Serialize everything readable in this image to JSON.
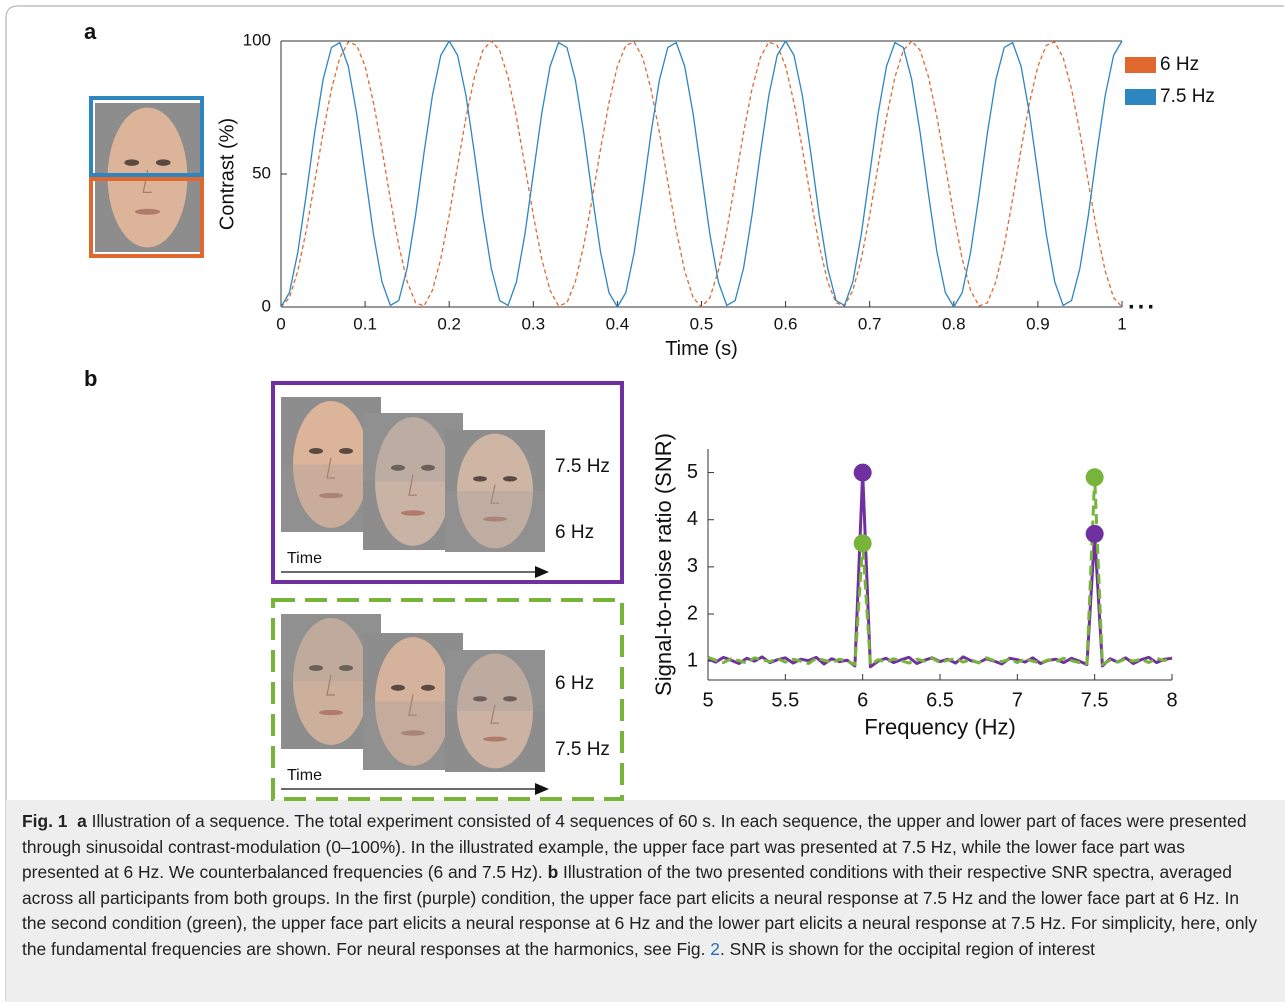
{
  "chart_data": [
    {
      "type": "line",
      "panel": "a",
      "xlabel": "Time (s)",
      "ylabel": "Contrast (%)",
      "annotation": "...",
      "box": true,
      "legend": "right",
      "x": [
        0,
        0.01,
        0.02,
        0.03,
        0.04,
        0.05,
        0.06,
        0.07,
        0.08,
        0.09,
        0.1,
        0.11,
        0.12,
        0.13,
        0.14,
        0.15,
        0.16,
        0.17,
        0.18,
        0.19,
        0.2,
        0.21,
        0.22,
        0.23,
        0.24,
        0.25,
        0.26,
        0.27,
        0.28,
        0.29,
        0.3,
        0.31,
        0.32,
        0.33,
        0.34,
        0.35,
        0.36,
        0.37,
        0.38,
        0.39,
        0.4,
        0.41,
        0.42,
        0.43,
        0.44,
        0.45,
        0.46,
        0.47,
        0.48,
        0.49,
        0.5,
        0.51,
        0.52,
        0.53,
        0.54,
        0.55,
        0.56,
        0.57,
        0.58,
        0.59,
        0.6,
        0.61,
        0.62,
        0.63,
        0.64,
        0.65,
        0.66,
        0.67,
        0.68,
        0.69,
        0.7,
        0.71,
        0.72,
        0.73,
        0.74,
        0.75,
        0.76,
        0.77,
        0.78,
        0.79,
        0.8,
        0.81,
        0.82,
        0.83,
        0.84,
        0.85,
        0.86,
        0.87,
        0.88,
        0.89,
        0.9,
        0.91,
        0.92,
        0.93,
        0.94,
        0.95,
        0.96,
        0.97,
        0.98,
        0.99,
        1
      ],
      "series": [
        {
          "name": "6 Hz",
          "color": "#e0682f",
          "dash": true,
          "values": [
            0,
            3.5,
            13.6,
            28.7,
            46.9,
            65.5,
            81.9,
            93.8,
            99.6,
            98.4,
            90.5,
            76.8,
            59.4,
            40.6,
            23.2,
            9.5,
            1.6,
            0.4,
            6.2,
            18.1,
            34.5,
            53.1,
            71.3,
            86.4,
            96.5,
            100,
            96.5,
            86.4,
            71.3,
            53.1,
            34.5,
            18.1,
            6.2,
            0.4,
            1.6,
            9.5,
            23.2,
            40.6,
            59.4,
            76.8,
            90.5,
            98.4,
            99.6,
            93.8,
            81.9,
            65.5,
            46.9,
            28.7,
            13.6,
            3.5,
            0,
            3.5,
            13.6,
            28.7,
            46.9,
            65.5,
            81.9,
            93.8,
            99.6,
            98.4,
            90.5,
            76.8,
            59.4,
            40.6,
            23.2,
            9.5,
            1.6,
            0.4,
            6.2,
            18.1,
            34.5,
            53.1,
            71.3,
            86.4,
            96.5,
            100,
            96.5,
            86.4,
            71.3,
            53.1,
            34.5,
            18.1,
            6.2,
            0.4,
            1.6,
            9.5,
            23.2,
            40.6,
            59.4,
            76.8,
            90.5,
            98.4,
            99.6,
            93.8,
            81.9,
            65.5,
            46.9,
            28.7,
            13.6,
            3.5,
            0
          ]
        },
        {
          "name": "7.5 Hz",
          "color": "#2e86c1",
          "dash": false,
          "values": [
            0,
            5.4,
            20.6,
            42.2,
            65.5,
            85.4,
            97.6,
            99.4,
            90.5,
            72.7,
            50,
            27.3,
            9.5,
            0.6,
            2.4,
            14.6,
            34.5,
            57.8,
            79.4,
            94.6,
            100,
            94.6,
            79.4,
            57.8,
            34.5,
            14.6,
            2.4,
            0.6,
            9.5,
            27.3,
            50,
            72.7,
            90.5,
            99.4,
            97.6,
            85.4,
            65.5,
            42.2,
            20.6,
            5.4,
            0,
            5.4,
            20.6,
            42.2,
            65.5,
            85.4,
            97.6,
            99.4,
            90.5,
            72.7,
            50,
            27.3,
            9.5,
            0.6,
            2.4,
            14.6,
            34.5,
            57.8,
            79.4,
            94.6,
            100,
            94.6,
            79.4,
            57.8,
            34.5,
            14.6,
            2.4,
            0.6,
            9.5,
            27.3,
            50,
            72.7,
            90.5,
            99.4,
            97.6,
            85.4,
            65.5,
            42.2,
            20.6,
            5.4,
            0,
            5.4,
            20.6,
            42.2,
            65.5,
            85.4,
            97.6,
            99.4,
            90.5,
            72.7,
            50,
            27.3,
            9.5,
            0.6,
            2.4,
            14.6,
            34.5,
            57.8,
            79.4,
            94.6,
            100
          ]
        }
      ],
      "xlim": [
        0,
        1
      ],
      "ylim": [
        0,
        100
      ],
      "xticks": [
        0,
        0.1,
        0.2,
        0.3,
        0.4,
        0.5,
        0.6,
        0.7,
        0.8,
        0.9,
        1
      ],
      "yticks": [
        0,
        50,
        100
      ]
    },
    {
      "type": "line",
      "panel": "b",
      "xlabel": "Frequency (Hz)",
      "ylabel": "Signal-to-noise ratio (SNR)",
      "box": false,
      "markers": true,
      "x": [
        5,
        5.05,
        5.1,
        5.15,
        5.2,
        5.25,
        5.3,
        5.35,
        5.4,
        5.45,
        5.5,
        5.55,
        5.6,
        5.65,
        5.7,
        5.75,
        5.8,
        5.85,
        5.9,
        5.95,
        6,
        6.05,
        6.1,
        6.15,
        6.2,
        6.25,
        6.3,
        6.35,
        6.4,
        6.45,
        6.5,
        6.55,
        6.6,
        6.65,
        6.7,
        6.75,
        6.8,
        6.85,
        6.9,
        6.95,
        7,
        7.05,
        7.1,
        7.15,
        7.2,
        7.25,
        7.3,
        7.35,
        7.4,
        7.45,
        7.5,
        7.55,
        7.6,
        7.65,
        7.7,
        7.75,
        7.8,
        7.85,
        7.9,
        7.95,
        8
      ],
      "series": [
        {
          "color": "#7030a0",
          "dash": false,
          "values": [
            1.05,
            0.98,
            1.08,
            1.02,
            0.95,
            1.06,
            1.0,
            1.09,
            0.97,
            1.03,
            1.07,
            0.96,
            1.04,
            1.01,
            1.08,
            0.94,
            1.05,
            0.99,
            1.02,
            0.9,
            5.0,
            0.88,
            1.0,
            1.06,
            0.97,
            1.03,
            1.08,
            0.95,
            1.02,
            1.07,
            0.99,
            1.04,
            0.96,
            1.09,
            1.01,
            0.97,
            1.05,
            1.0,
            0.94,
            1.06,
            1.03,
            0.98,
            1.07,
            0.95,
            1.02,
            1.04,
            0.97,
            1.06,
            1.0,
            0.93,
            3.7,
            0.9,
            1.05,
            0.98,
            1.07,
            0.95,
            1.03,
            1.08,
            0.97,
            1.04,
            1.06
          ]
        },
        {
          "color": "#78b43a",
          "dash": true,
          "values": [
            1.08,
            1.02,
            0.97,
            1.05,
            1.01,
            0.96,
            1.07,
            1.03,
            0.99,
            1.05,
            0.98,
            1.04,
            1.0,
            0.95,
            1.06,
            1.02,
            0.97,
            1.04,
            1.0,
            0.93,
            3.5,
            0.92,
            1.03,
            0.98,
            1.05,
            1.01,
            0.96,
            1.04,
            1.0,
            1.06,
            0.97,
            1.02,
            1.05,
            0.98,
            1.03,
            0.96,
            1.07,
            1.01,
            0.99,
            1.04,
            0.97,
            1.05,
            1.0,
            0.96,
            1.03,
            0.99,
            1.06,
            1.01,
            0.97,
            0.95,
            4.9,
            0.93,
            1.02,
            0.98,
            1.05,
            1.0,
            1.04,
            0.97,
            1.06,
            1.01,
            1.08
          ]
        }
      ],
      "xlim": [
        5,
        8
      ],
      "ylim": [
        0.6,
        5.5
      ],
      "xticks": [
        5,
        5.5,
        6,
        6.5,
        7,
        7.5,
        8
      ],
      "yticks": [
        1,
        2,
        3,
        4,
        5
      ]
    }
  ],
  "conditions": [
    {
      "upper": "7.5 Hz",
      "lower": "6 Hz",
      "time": "Time"
    },
    {
      "upper": "6 Hz",
      "lower": "7.5 Hz",
      "time": "Time"
    }
  ],
  "caption": {
    "label": "Fig. 1",
    "a_label": "a",
    "a_text": "Illustration of a sequence. The total experiment consisted of 4 sequences of 60 s. In each sequence, the upper and lower part of faces were presented through sinusoidal contrast-modulation (0–100%). In the illustrated example, the upper face part was presented at 7.5 Hz, while the lower face part was presented at 6 Hz. We counterbalanced frequencies (6 and 7.5 Hz).",
    "b_label": "b",
    "b_text": "Illustration of the two presented conditions with their respective SNR spectra, averaged across all participants from both groups. In the first (purple) condition, the upper face part elicits a neural response at 7.5 Hz and the lower face part at 6 Hz. In the second condition (green), the upper face part elicits a neural response at 6 Hz and the lower part elicits a neural response at 7.5 Hz. For simplicity, here, only the fundamental frequencies are shown. For neural responses at the harmonics, see Fig. ",
    "link": "2",
    "b_tail": ". SNR is shown for the occipital region of interest"
  }
}
